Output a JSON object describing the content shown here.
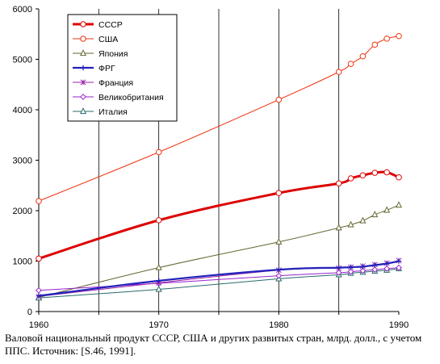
{
  "chart_data": {
    "type": "line",
    "title": "",
    "xlabel": "",
    "ylabel": "",
    "xlim": [
      1960,
      1990
    ],
    "ylim": [
      0,
      6000
    ],
    "x_ticks": [
      "1960",
      "1970",
      "1980",
      "1990"
    ],
    "y_ticks": [
      "0",
      "1000",
      "2000",
      "3000",
      "4000",
      "5000",
      "6000"
    ],
    "grid": "vertical",
    "legend_position": "top-left",
    "series": [
      {
        "name": "СССР",
        "color": "#dd0000",
        "marker": "circle",
        "x": [
          1960,
          1970,
          1980,
          1985,
          1986,
          1987,
          1988,
          1989,
          1990
        ],
        "y": [
          1050,
          1810,
          2350,
          2540,
          2640,
          2700,
          2750,
          2760,
          2660
        ]
      },
      {
        "name": "США",
        "color": "#ee3311",
        "marker": "circle",
        "x": [
          1960,
          1970,
          1980,
          1985,
          1986,
          1987,
          1988,
          1989,
          1990
        ],
        "y": [
          2190,
          3160,
          4200,
          4750,
          4910,
          5060,
          5290,
          5410,
          5460
        ]
      },
      {
        "name": "Япония",
        "color": "#666633",
        "marker": "triangle",
        "x": [
          1960,
          1970,
          1980,
          1985,
          1986,
          1987,
          1988,
          1989,
          1990
        ],
        "y": [
          280,
          870,
          1380,
          1660,
          1720,
          1800,
          1920,
          2010,
          2110
        ]
      },
      {
        "name": "ФРГ",
        "color": "#2222bb",
        "marker": "plus",
        "x": [
          1960,
          1970,
          1980,
          1985,
          1986,
          1987,
          1988,
          1989,
          1990
        ],
        "y": [
          310,
          610,
          830,
          870,
          880,
          890,
          920,
          950,
          1000
        ]
      },
      {
        "name": "Франция",
        "color": "#9922aa",
        "marker": "star",
        "x": [
          1960,
          1970,
          1980,
          1985,
          1986,
          1987,
          1988,
          1989,
          1990
        ],
        "y": [
          300,
          570,
          820,
          860,
          880,
          900,
          930,
          960,
          1010
        ]
      },
      {
        "name": "Великобритания",
        "color": "#9922cc",
        "marker": "diamond",
        "x": [
          1960,
          1970,
          1980,
          1985,
          1986,
          1987,
          1988,
          1989,
          1990
        ],
        "y": [
          420,
          560,
          710,
          770,
          790,
          810,
          830,
          850,
          870
        ]
      },
      {
        "name": "Италия",
        "color": "#2a6a6a",
        "marker": "triangle",
        "x": [
          1960,
          1970,
          1980,
          1985,
          1986,
          1987,
          1988,
          1989,
          1990
        ],
        "y": [
          270,
          440,
          650,
          730,
          760,
          780,
          800,
          820,
          850
        ]
      }
    ]
  },
  "caption": "Валовой национальный продукт СССР, США  и других развитых стран, млрд. долл.,  с учетом ППС. Источник: [S.46, 1991]."
}
